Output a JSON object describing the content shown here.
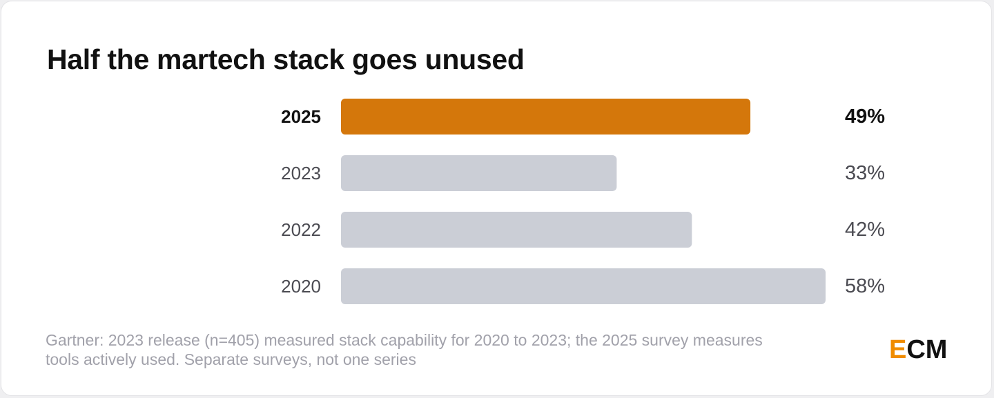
{
  "chart_data": {
    "type": "bar",
    "orientation": "horizontal",
    "title": "Half the martech stack goes unused",
    "categories": [
      "2025",
      "2023",
      "2022",
      "2020"
    ],
    "values": [
      49,
      33,
      42,
      58
    ],
    "value_labels": [
      "49%",
      "33%",
      "42%",
      "58%"
    ],
    "highlight_category": "2025",
    "unit": "%",
    "xlim": [
      0,
      58
    ],
    "grid": false,
    "colors": {
      "highlight": "#d4770b",
      "default": "#cbced6",
      "highlight_text": "#111111",
      "default_text": "#4b4b52"
    }
  },
  "footnote": {
    "line1": "Gartner: 2023 release (n=405) measured stack capability for 2020 to 2023; the 2025 survey measures",
    "line2": "tools actively used. Separate surveys, not one series"
  },
  "logo": {
    "accent_letter": "E",
    "rest": "CM",
    "accent_color": "#f08c00"
  }
}
